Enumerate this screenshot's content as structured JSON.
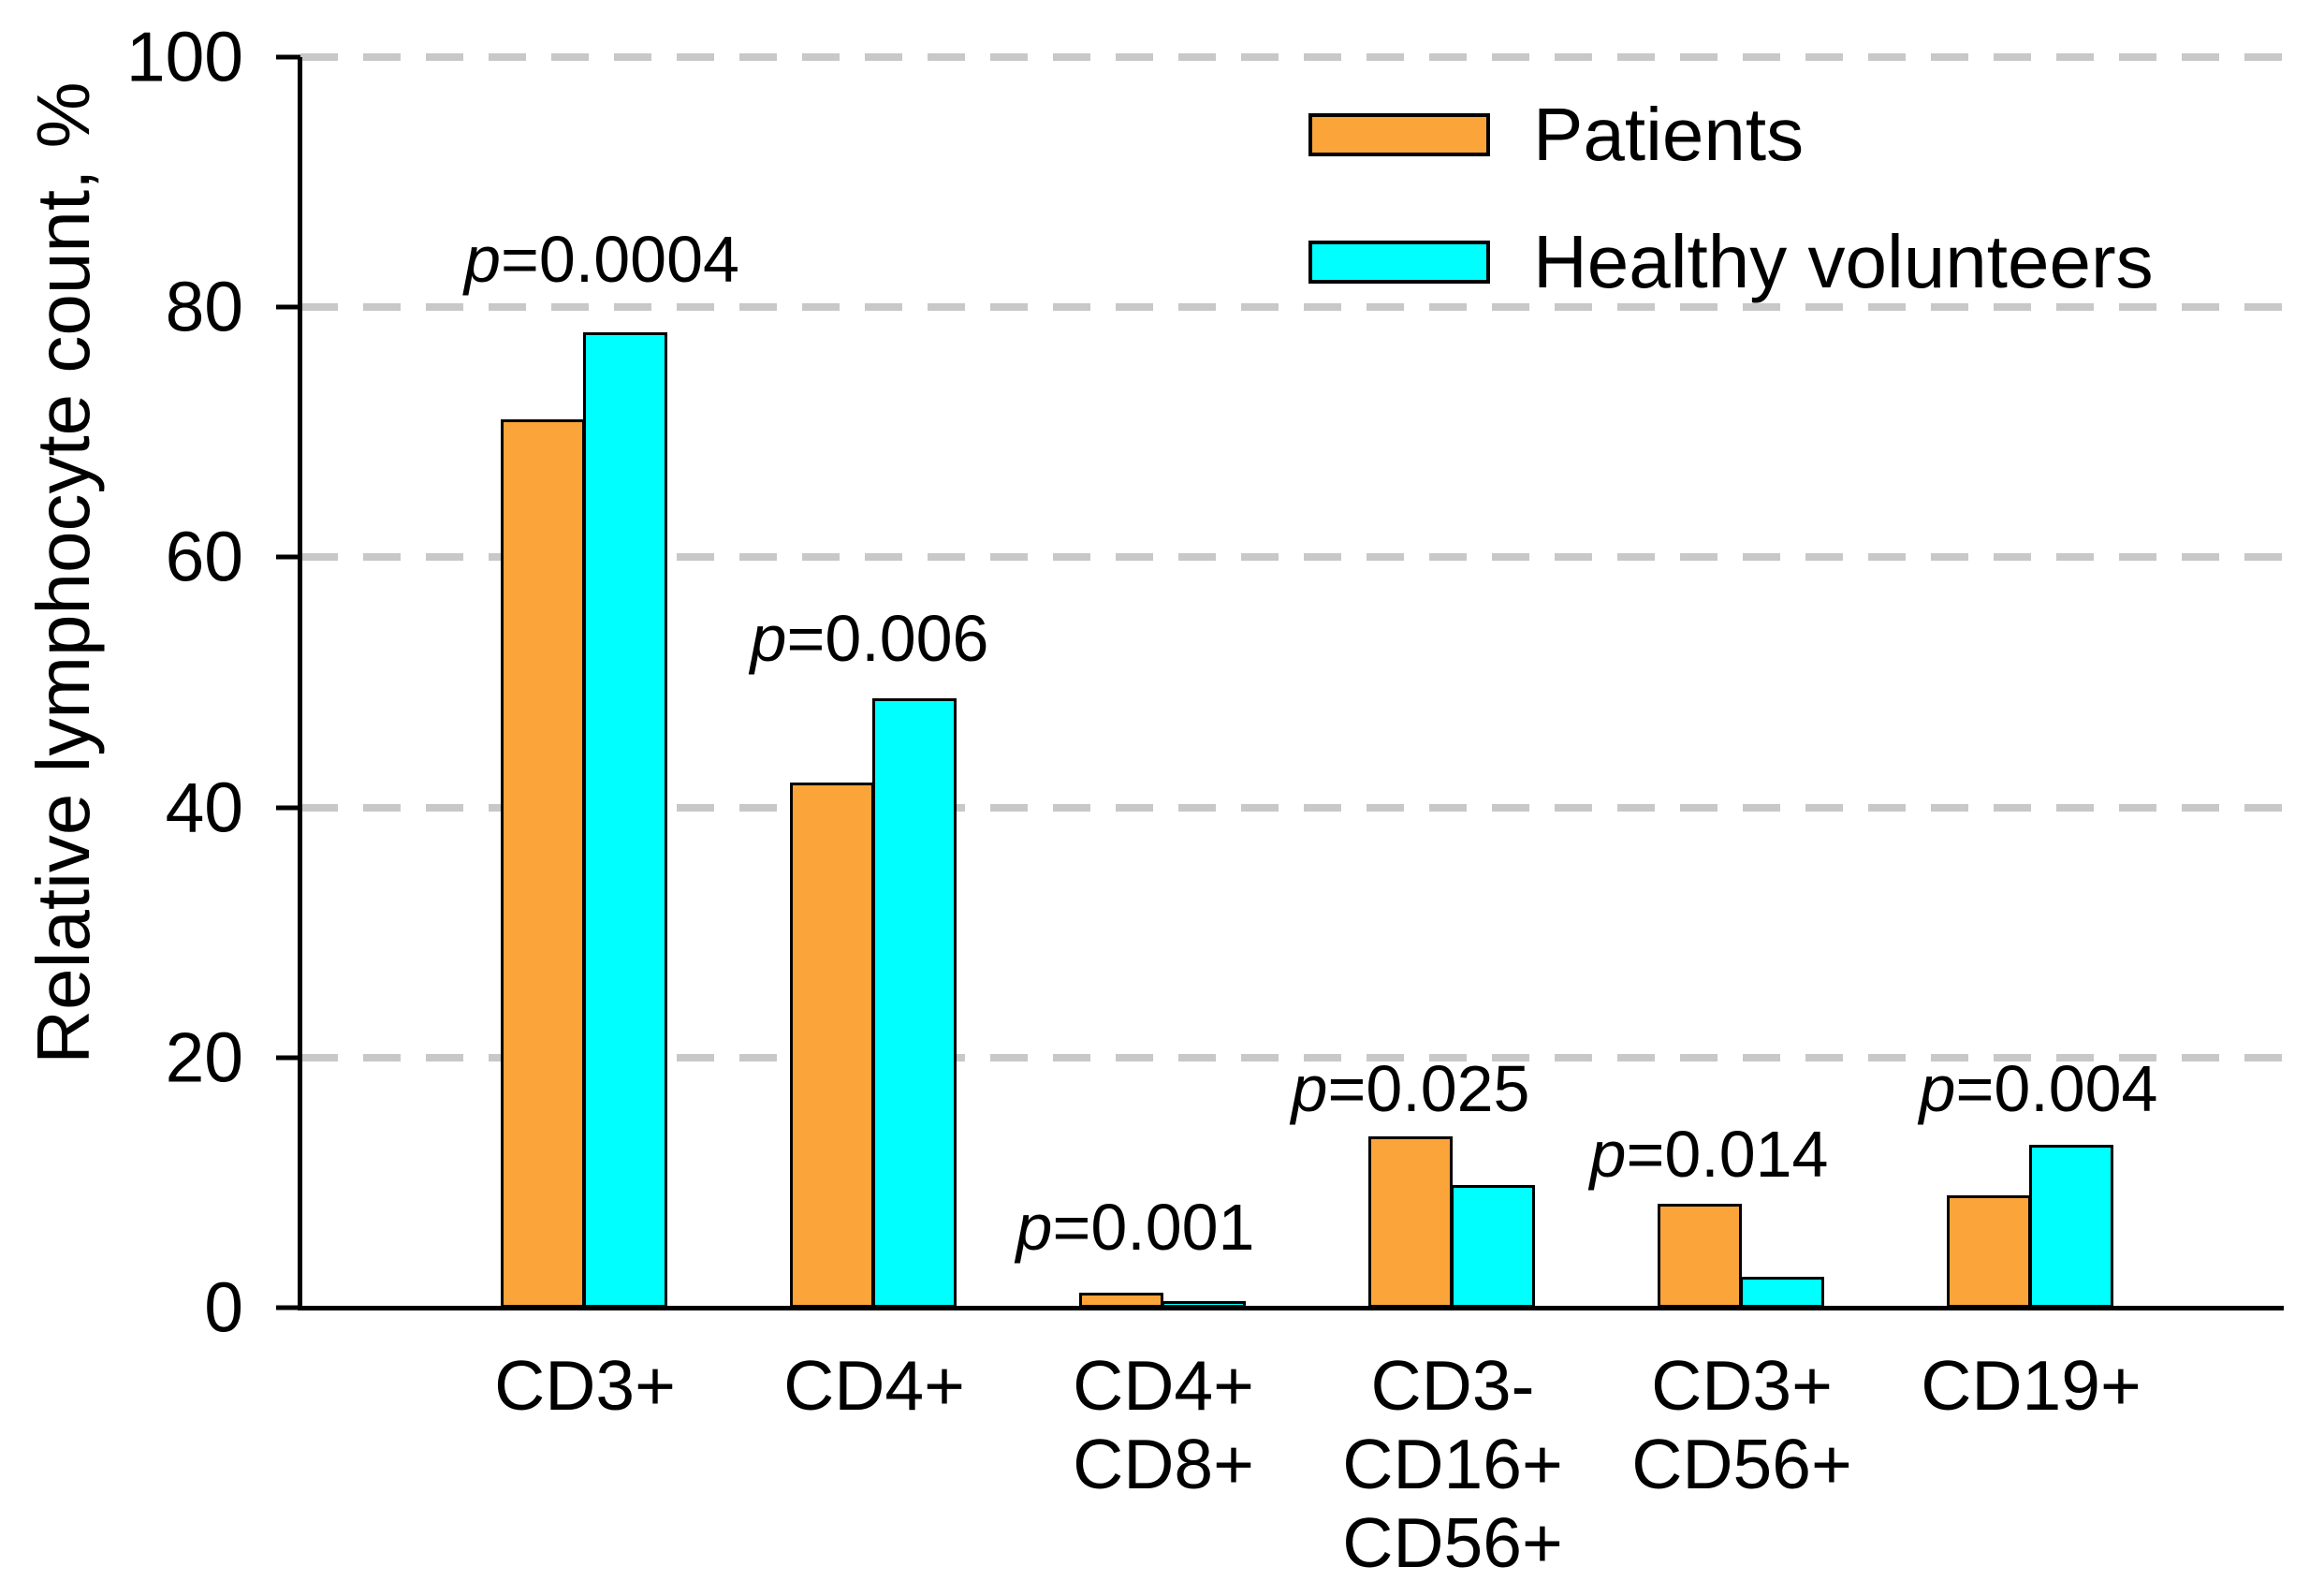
{
  "figure": {
    "ylabel": "Relative lymphocyte count, %",
    "background_color": "#FFFFFF",
    "gridline_color": "#C8C8C8",
    "axis_color": "#000000"
  },
  "legend": {
    "position": "top-right",
    "items": [
      {
        "label": "Patients",
        "color": "#FAA43A",
        "swatch": "orange-rect"
      },
      {
        "label": "Healthy volunteers",
        "color": "#00FFFF",
        "swatch": "cyan-rect"
      }
    ]
  },
  "chart_data": {
    "type": "bar",
    "title": "",
    "xlabel": "",
    "ylabel": "Relative lymphocyte count, %",
    "ylim": [
      0,
      100
    ],
    "yticks": [
      0,
      20,
      40,
      60,
      80,
      100
    ],
    "grid": "horizontal-dashed",
    "legend_position": "top-right",
    "categories": [
      "CD3+",
      "CD4+",
      "CD4+\nCD8+",
      "CD3-\nCD16+\nCD56+",
      "CD3+\nCD56+",
      "CD19+"
    ],
    "series": [
      {
        "name": "Patients",
        "color": "#FAA43A",
        "values": [
          71,
          42,
          1.2,
          13.7,
          8.3,
          9
        ]
      },
      {
        "name": "Healthy volunteers",
        "color": "#00FFFF",
        "values": [
          78,
          48.7,
          0.5,
          9.8,
          2.5,
          13
        ]
      }
    ],
    "annotations": [
      {
        "text": "p=0.0004",
        "group": 0,
        "y": 83.8
      },
      {
        "text": "p=0.006",
        "group": 1,
        "y": 53.5
      },
      {
        "text": "p=0.001",
        "group": 2,
        "y": 6.4
      },
      {
        "text": "p=0.025",
        "group": 3,
        "y": 17.5
      },
      {
        "text": "p=0.014",
        "group": 4,
        "y": 12.3
      },
      {
        "text": "p=0.004",
        "group": 5,
        "y": 17.5
      }
    ]
  }
}
